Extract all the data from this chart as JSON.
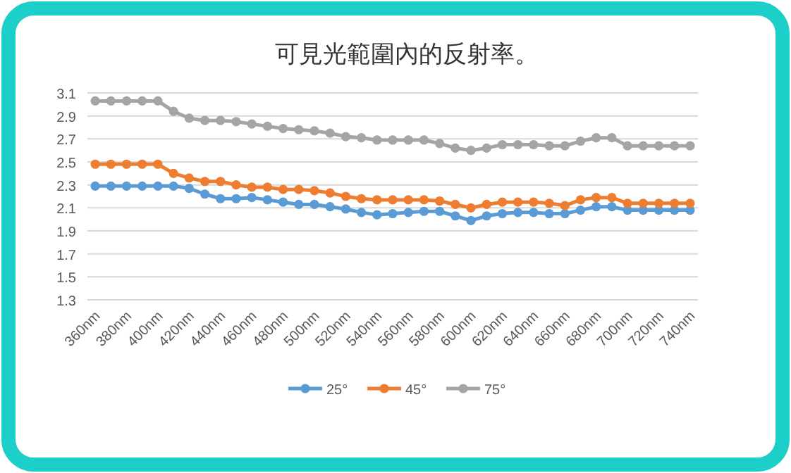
{
  "chart_data": {
    "type": "line",
    "title": "可見光範圍內的反射率。",
    "categories": [
      "360nm",
      null,
      "380nm",
      null,
      "400nm",
      null,
      "420nm",
      null,
      "440nm",
      null,
      "460nm",
      null,
      "480nm",
      null,
      "500nm",
      null,
      "520nm",
      null,
      "540nm",
      null,
      "560nm",
      null,
      "580nm",
      null,
      "600nm",
      null,
      "620nm",
      null,
      "640nm",
      null,
      "660nm",
      null,
      "680nm",
      null,
      "700nm",
      null,
      "720nm",
      null,
      "740nm"
    ],
    "series": [
      {
        "name": "25°",
        "color": "#5b9bd5",
        "values": [
          2.29,
          2.29,
          2.29,
          2.29,
          2.29,
          2.29,
          2.27,
          2.22,
          2.18,
          2.18,
          2.19,
          2.17,
          2.15,
          2.13,
          2.13,
          2.11,
          2.09,
          2.06,
          2.04,
          2.05,
          2.06,
          2.07,
          2.07,
          2.03,
          1.99,
          2.03,
          2.05,
          2.06,
          2.06,
          2.05,
          2.05,
          2.08,
          2.11,
          2.11,
          2.08,
          2.08,
          2.08,
          2.08,
          2.08
        ]
      },
      {
        "name": "45°",
        "color": "#ed7d31",
        "values": [
          2.48,
          2.48,
          2.48,
          2.48,
          2.48,
          2.4,
          2.36,
          2.33,
          2.33,
          2.3,
          2.28,
          2.28,
          2.26,
          2.26,
          2.25,
          2.23,
          2.2,
          2.18,
          2.17,
          2.17,
          2.17,
          2.17,
          2.16,
          2.13,
          2.1,
          2.13,
          2.15,
          2.15,
          2.15,
          2.14,
          2.12,
          2.17,
          2.19,
          2.19,
          2.14,
          2.14,
          2.14,
          2.14,
          2.14
        ]
      },
      {
        "name": "75°",
        "color": "#a5a5a5",
        "values": [
          3.03,
          3.03,
          3.03,
          3.03,
          3.03,
          2.94,
          2.88,
          2.86,
          2.86,
          2.85,
          2.83,
          2.81,
          2.79,
          2.78,
          2.77,
          2.75,
          2.72,
          2.71,
          2.69,
          2.69,
          2.69,
          2.69,
          2.66,
          2.62,
          2.6,
          2.62,
          2.65,
          2.65,
          2.65,
          2.64,
          2.64,
          2.68,
          2.71,
          2.71,
          2.64,
          2.64,
          2.64,
          2.64,
          2.64
        ]
      }
    ],
    "ylim": [
      1.3,
      3.1
    ],
    "yticks": [
      1.3,
      1.5,
      1.7,
      1.9,
      2.1,
      2.3,
      2.5,
      2.7,
      2.9,
      3.1
    ],
    "grid": "y",
    "legend": "bottom",
    "marker": "circle",
    "line_style": "solid"
  }
}
